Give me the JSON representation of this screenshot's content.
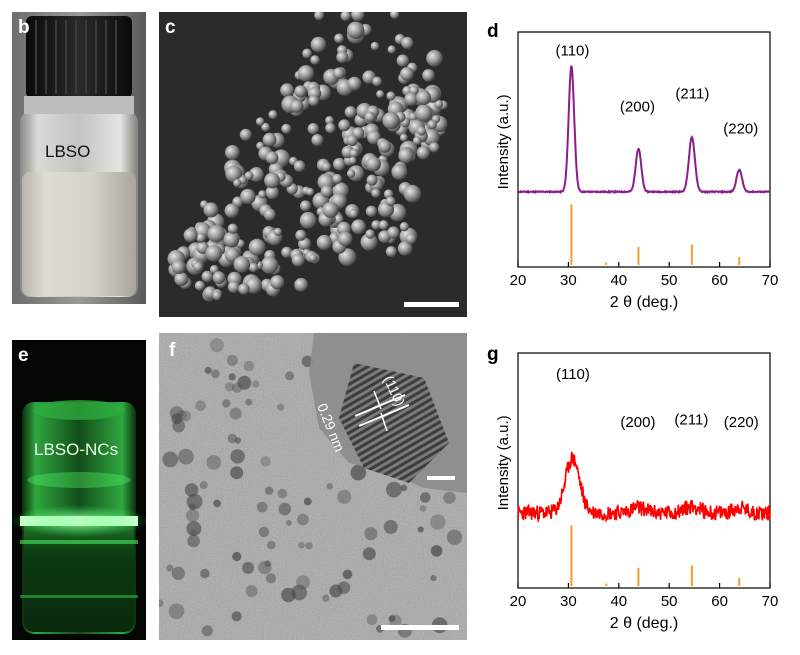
{
  "panels": {
    "b": {
      "label": "b",
      "vial_text": "LBSO"
    },
    "c": {
      "label": "c"
    },
    "d": {
      "label": "d"
    },
    "e": {
      "label": "e",
      "vial_text": "LBSO-NCs"
    },
    "f": {
      "label": "f",
      "inset_plane": "(110)",
      "inset_spacing": "0.29 nm"
    },
    "g": {
      "label": "g"
    }
  },
  "colors": {
    "xrd_top": "#8B1C8E",
    "xrd_bottom": "#FF0000",
    "reference": "#F39C32",
    "glow": "#3CFF5A"
  },
  "chart_data": [
    {
      "id": "d",
      "type": "line",
      "xlabel": "2 θ (deg.)",
      "ylabel": "Intensity (a.u.)",
      "xlim": [
        20,
        70
      ],
      "xticks": [
        20,
        30,
        40,
        50,
        60,
        70
      ],
      "xticklabels": [
        "20",
        "30",
        "40",
        "50",
        "60",
        "70"
      ],
      "baseline": 0.28,
      "noise": 0.004,
      "peaks": [
        {
          "x": 30.6,
          "h": 0.97,
          "w": 0.55
        },
        {
          "x": 43.9,
          "h": 0.33,
          "w": 0.55
        },
        {
          "x": 54.5,
          "h": 0.42,
          "w": 0.6
        },
        {
          "x": 63.9,
          "h": 0.17,
          "w": 0.55
        }
      ],
      "annotations": [
        {
          "text": "(110)",
          "x": 30.8,
          "y": 1.05
        },
        {
          "text": "(200)",
          "x": 43.7,
          "y": 0.62
        },
        {
          "text": "(211)",
          "x": 54.6,
          "y": 0.72
        },
        {
          "text": "(220)",
          "x": 64.2,
          "y": 0.45
        }
      ],
      "reference": [
        {
          "x": 30.6,
          "h": 0.28
        },
        {
          "x": 37.5,
          "h": 0.02
        },
        {
          "x": 43.9,
          "h": 0.09
        },
        {
          "x": 54.5,
          "h": 0.1
        },
        {
          "x": 63.9,
          "h": 0.045
        }
      ]
    },
    {
      "id": "g",
      "type": "line",
      "xlabel": "2 θ (deg.)",
      "ylabel": "Intensity (a.u.)",
      "xlim": [
        20,
        70
      ],
      "xticks": [
        20,
        30,
        40,
        50,
        60,
        70
      ],
      "xticklabels": [
        "20",
        "30",
        "40",
        "50",
        "60",
        "70"
      ],
      "baseline": 0.45,
      "noise": 0.06,
      "peaks": [
        {
          "x": 30.8,
          "h": 0.42,
          "w": 1.4
        },
        {
          "x": 43.9,
          "h": 0.04,
          "w": 1.5
        },
        {
          "x": 54.5,
          "h": 0.05,
          "w": 1.5
        },
        {
          "x": 63.9,
          "h": 0.04,
          "w": 1.2
        }
      ],
      "annotations": [
        {
          "text": "(110)",
          "x": 30.9,
          "y": 1.03
        },
        {
          "text": "(200)",
          "x": 43.8,
          "y": 0.66
        },
        {
          "text": "(211)",
          "x": 54.4,
          "y": 0.68
        },
        {
          "text": "(220)",
          "x": 64.3,
          "y": 0.66
        }
      ],
      "reference": [
        {
          "x": 30.6,
          "h": 0.28
        },
        {
          "x": 37.5,
          "h": 0.02
        },
        {
          "x": 43.9,
          "h": 0.09
        },
        {
          "x": 54.5,
          "h": 0.1
        },
        {
          "x": 63.9,
          "h": 0.045
        }
      ]
    }
  ]
}
